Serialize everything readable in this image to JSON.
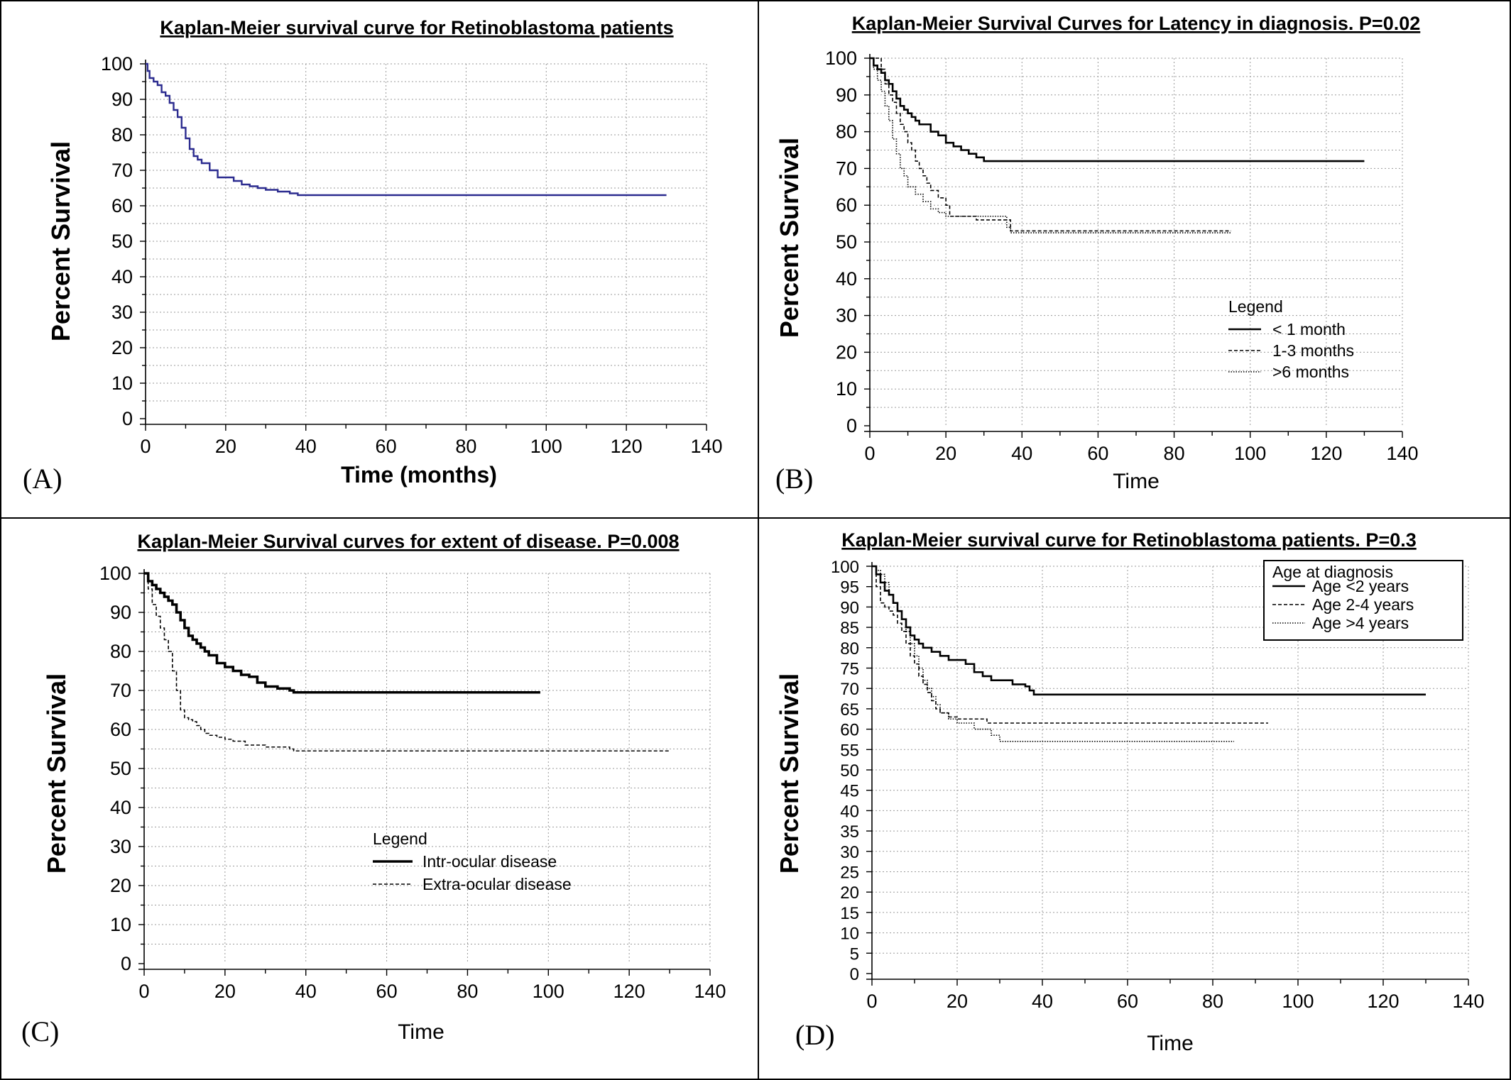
{
  "chart_data": [
    {
      "panel_label": "(A)",
      "type": "line",
      "title": "Kaplan-Meier survival curve for Retinoblastoma patients",
      "xlabel": "Time (months)",
      "ylabel": "Percent Survival",
      "xlim": [
        0,
        140
      ],
      "ylim": [
        0,
        100
      ],
      "xticks": [
        0,
        20,
        40,
        60,
        80,
        100,
        120,
        140
      ],
      "yticks": [
        0,
        10,
        20,
        30,
        40,
        50,
        60,
        70,
        80,
        90,
        100
      ],
      "grid": true,
      "series": [
        {
          "color": "#2b2b8f",
          "style": "solid",
          "x": [
            0,
            0.5,
            1,
            2,
            3,
            4,
            5,
            6,
            7,
            8,
            9,
            10,
            11,
            12,
            13,
            14,
            16,
            18,
            20,
            22,
            24,
            26,
            28,
            30,
            33,
            36,
            38,
            130
          ],
          "y": [
            100,
            98,
            96,
            95,
            94,
            92,
            91,
            89,
            87,
            85,
            82,
            79,
            76,
            74,
            73,
            72,
            70,
            68,
            68,
            67,
            66,
            65.5,
            65,
            64.5,
            64,
            63.5,
            63,
            63
          ]
        }
      ]
    },
    {
      "panel_label": "(B)",
      "type": "line",
      "title": "Kaplan-Meier Survival Curves for Latency in diagnosis. P=0.02",
      "xlabel": "Time",
      "ylabel": "Percent Survival",
      "xlim": [
        0,
        140
      ],
      "ylim": [
        0,
        100
      ],
      "xticks": [
        0,
        20,
        40,
        60,
        80,
        100,
        120,
        140
      ],
      "yticks": [
        0,
        10,
        20,
        30,
        40,
        50,
        60,
        70,
        80,
        90,
        100
      ],
      "grid": true,
      "legend": {
        "title": "Legend",
        "position": "middle-right"
      },
      "series": [
        {
          "name": "< 1 month",
          "style": "solid",
          "width": 2.6,
          "x": [
            0,
            1,
            2,
            3,
            4,
            5,
            6,
            7,
            8,
            9,
            10,
            11,
            12,
            13,
            14,
            16,
            18,
            20,
            22,
            24,
            26,
            28,
            30,
            130
          ],
          "y": [
            100,
            98,
            97,
            96,
            94,
            93,
            91,
            89,
            87,
            86,
            85,
            84,
            83,
            82,
            82,
            80,
            79,
            77,
            76,
            75,
            74,
            73,
            72,
            72
          ]
        },
        {
          "name": "1-3 months",
          "style": "dashed",
          "width": 1.6,
          "x": [
            0,
            2,
            3,
            4,
            5,
            6,
            7,
            8,
            9,
            10,
            11,
            12,
            13,
            14,
            15,
            16,
            18,
            20,
            21,
            27,
            28,
            36,
            37,
            95
          ],
          "y": [
            100,
            100,
            97,
            93,
            90,
            88,
            85,
            82,
            80,
            77,
            75,
            72,
            70,
            68,
            66,
            64,
            62,
            60,
            57,
            57,
            56,
            56,
            53,
            53
          ]
        },
        {
          "name": ">6 months",
          "style": "dotted",
          "width": 1.6,
          "x": [
            0,
            1,
            2,
            3,
            4,
            5,
            6,
            7,
            8,
            9,
            10,
            12,
            14,
            16,
            18,
            20,
            28,
            36,
            37,
            95
          ],
          "y": [
            100,
            97,
            94,
            91,
            87,
            83,
            78,
            74,
            70,
            68,
            65,
            63,
            61,
            59,
            58,
            57,
            57,
            54,
            52.5,
            52.5
          ]
        }
      ]
    },
    {
      "panel_label": "(C)",
      "type": "line",
      "title": "Kaplan-Meier Survival curves for extent of disease. P=0.008",
      "xlabel": "Time",
      "ylabel": "Percent Survival",
      "xlim": [
        0,
        140
      ],
      "ylim": [
        0,
        100
      ],
      "xticks": [
        0,
        20,
        40,
        60,
        80,
        100,
        120,
        140
      ],
      "yticks": [
        0,
        10,
        20,
        30,
        40,
        50,
        60,
        70,
        80,
        90,
        100
      ],
      "grid": true,
      "legend": {
        "title": "Legend",
        "position": "bottom-center"
      },
      "series": [
        {
          "name": "Intr-ocular disease",
          "style": "solid",
          "width": 3.6,
          "x": [
            0,
            1,
            2,
            3,
            4,
            5,
            6,
            7,
            8,
            9,
            10,
            11,
            12,
            13,
            14,
            15,
            16,
            18,
            20,
            22,
            24,
            26,
            28,
            30,
            33,
            36,
            37,
            98
          ],
          "y": [
            100,
            98,
            97,
            96,
            95,
            94,
            93,
            92,
            90,
            88,
            86,
            84,
            83,
            82,
            81,
            80,
            79,
            77,
            76,
            75,
            74,
            73.5,
            72,
            71,
            70.5,
            70,
            69.5,
            69.5
          ]
        },
        {
          "name": "Extra-ocular disease",
          "style": "dashed",
          "width": 1.6,
          "x": [
            0,
            1,
            2,
            3,
            4,
            5,
            6,
            7,
            8,
            9,
            10,
            11,
            12,
            13,
            14,
            15,
            16,
            18,
            20,
            22,
            25,
            30,
            36,
            37,
            130
          ],
          "y": [
            100,
            96,
            92,
            89,
            86,
            83,
            80,
            75,
            70,
            65,
            63,
            62.5,
            62,
            61,
            60,
            59,
            58.5,
            58,
            57.5,
            57,
            56,
            55.5,
            55,
            54.5,
            54.5
          ]
        }
      ]
    },
    {
      "panel_label": "(D)",
      "type": "line",
      "title": "Kaplan-Meier survival curve for Retinoblastoma patients. P=0.3",
      "xlabel": "Time",
      "ylabel": "Percent Survival",
      "xlim": [
        0,
        140
      ],
      "ylim": [
        0,
        100
      ],
      "xticks": [
        0,
        20,
        40,
        60,
        80,
        100,
        120,
        140
      ],
      "yticks": [
        0,
        5,
        10,
        15,
        20,
        25,
        30,
        35,
        40,
        45,
        50,
        55,
        60,
        65,
        70,
        75,
        80,
        85,
        90,
        95,
        100
      ],
      "grid": true,
      "legend": {
        "title": "Age at diagnosis",
        "position": "top-right",
        "boxed": true
      },
      "series": [
        {
          "name": "Age <2 years",
          "style": "solid",
          "width": 2.6,
          "x": [
            0,
            1,
            2,
            3,
            4,
            5,
            6,
            7,
            8,
            9,
            10,
            11,
            12,
            14,
            16,
            18,
            20,
            22,
            24,
            26,
            28,
            30,
            33,
            36,
            37,
            38,
            130
          ],
          "y": [
            100,
            98,
            96,
            94,
            93,
            91,
            89,
            87,
            85,
            83,
            82,
            81,
            80,
            79,
            78,
            77,
            77,
            76,
            74,
            73,
            72,
            72,
            71,
            70.5,
            69.5,
            68.5,
            68.5
          ]
        },
        {
          "name": "Age 2-4 years",
          "style": "dashed",
          "width": 1.6,
          "x": [
            0,
            1,
            2,
            3,
            4,
            5,
            6,
            7,
            8,
            9,
            10,
            11,
            12,
            13,
            14,
            15,
            16,
            18,
            20,
            27,
            93
          ],
          "y": [
            100,
            95,
            91,
            90,
            89,
            88,
            86,
            84,
            81,
            78,
            76,
            73,
            71,
            69,
            67,
            65,
            64,
            63,
            62.5,
            61.5,
            61.5
          ]
        },
        {
          "name": "Age >4 years",
          "style": "dotted",
          "width": 1.6,
          "x": [
            0,
            1,
            2,
            3,
            4,
            5,
            6,
            7,
            8,
            9,
            10,
            11,
            12,
            13,
            14,
            15,
            16,
            18,
            20,
            24,
            28,
            30,
            85
          ],
          "y": [
            100,
            99,
            98,
            96,
            93,
            91,
            89,
            87,
            84,
            81,
            78,
            75,
            72,
            70,
            68,
            66,
            64,
            62.5,
            61.5,
            60,
            58.5,
            57,
            57
          ]
        }
      ]
    }
  ]
}
